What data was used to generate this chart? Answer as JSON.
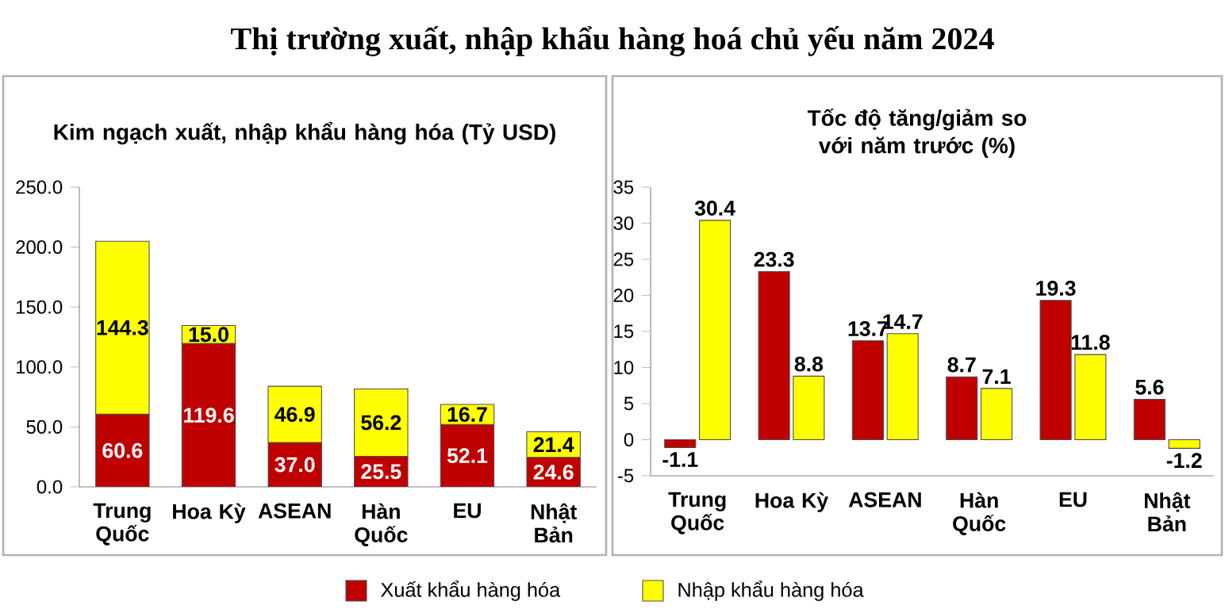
{
  "chart_data": [
    {
      "type": "bar",
      "stacked": true,
      "title": "Thị trường xuất, nhập khẩu hàng hoá chủ yếu năm 2024",
      "subtitle": "Kim ngạch xuất, nhập khẩu hàng hóa (Tỷ USD)",
      "categories": [
        "Trung Quốc",
        "Hoa Kỳ",
        "ASEAN",
        "Hàn Quốc",
        "EU",
        "Nhật Bản"
      ],
      "legend": "bottom",
      "ylim": [
        0,
        250
      ],
      "yticks": [
        {
          "value": 0,
          "label": "0.0"
        },
        {
          "value": 50,
          "label": "50.0"
        },
        {
          "value": 100,
          "label": "100.0"
        },
        {
          "value": 150,
          "label": "150.0"
        },
        {
          "value": 200,
          "label": "200.0"
        },
        {
          "value": 250,
          "label": "250.0"
        }
      ],
      "series": [
        {
          "name": "Xuất khẩu hàng hóa",
          "color": "#c00000",
          "values": [
            60.6,
            119.6,
            37.0,
            25.5,
            52.1,
            24.6
          ],
          "value_labels": [
            "60.6",
            "119.6",
            "37.0",
            "25.5",
            "52.1",
            "24.6"
          ]
        },
        {
          "name": "Nhập khẩu hàng hóa",
          "color": "#ffff00",
          "values": [
            144.3,
            15.0,
            46.9,
            56.2,
            16.7,
            21.4
          ],
          "value_labels": [
            "144.3",
            "15.0",
            "46.9",
            "56.2",
            "16.7",
            "21.4"
          ]
        }
      ]
    },
    {
      "type": "bar",
      "title": "Tốc độ tăng/giảm so với năm trước (%)",
      "categories": [
        "Trung Quốc",
        "Hoa Kỳ",
        "ASEAN",
        "Hàn Quốc",
        "EU",
        "Nhật Bản"
      ],
      "ylim": [
        -5,
        35
      ],
      "yticks": [
        -5,
        0,
        5,
        10,
        15,
        20,
        25,
        30,
        35
      ],
      "data_labels": true,
      "series": [
        {
          "color": "#c00000",
          "values": [
            -1.1,
            23.3,
            13.7,
            8.7,
            19.3,
            5.6
          ]
        },
        {
          "color": "#ffff00",
          "values": [
            30.4,
            8.8,
            14.7,
            7.1,
            11.8,
            -1.2
          ]
        }
      ]
    }
  ]
}
